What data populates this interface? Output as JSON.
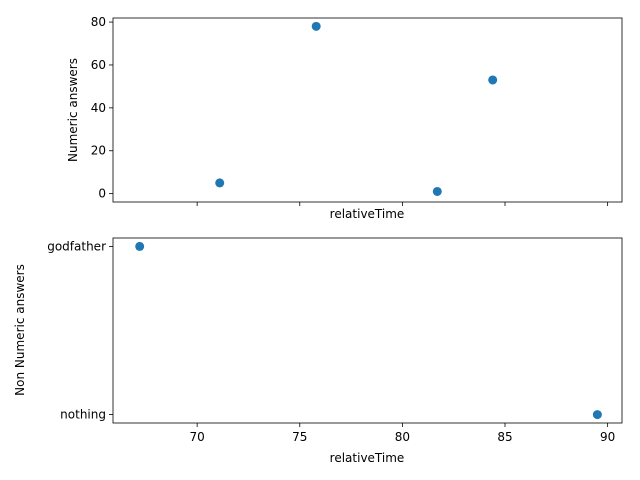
{
  "chart_data": [
    {
      "type": "scatter",
      "xlabel": "relativeTime",
      "ylabel": "Numeric answers",
      "xlim": [
        65.9,
        90.7
      ],
      "ylim": [
        -3.9,
        81.9
      ],
      "xticks": [
        70,
        75,
        80,
        85,
        90
      ],
      "xtick_labels_visible": false,
      "yticks": [
        0,
        20,
        40,
        60,
        80
      ],
      "ytick_labels": [
        "0",
        "20",
        "40",
        "60",
        "80"
      ],
      "color": "#1f77b4",
      "points": [
        {
          "x": 71.1,
          "y": 5
        },
        {
          "x": 75.8,
          "y": 78
        },
        {
          "x": 81.7,
          "y": 1
        },
        {
          "x": 84.4,
          "y": 53
        }
      ]
    },
    {
      "type": "scatter",
      "xlabel": "relativeTime",
      "ylabel": "Non Numeric answers",
      "xlim": [
        65.9,
        90.7
      ],
      "xticks": [
        70,
        75,
        80,
        85,
        90
      ],
      "xtick_labels": [
        "70",
        "75",
        "80",
        "85",
        "90"
      ],
      "categories": [
        "nothing",
        "godfather"
      ],
      "color": "#1f77b4",
      "points": [
        {
          "x": 67.2,
          "y": "godfather"
        },
        {
          "x": 89.5,
          "y": "nothing"
        }
      ]
    }
  ]
}
